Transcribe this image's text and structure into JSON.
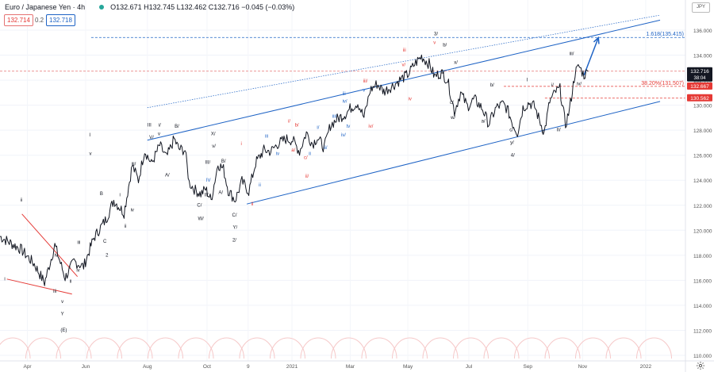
{
  "header": {
    "title": "Euro / Japanese Yen · 4h",
    "ohlc": "O132.671  H132.745  L132.462  C132.716  −0.045 (−0.03%)",
    "sell": "132.714",
    "spread": "0.2",
    "buy": "132.718",
    "status_color": "#26a69a"
  },
  "currency_label": "JPY",
  "settings_icon": "gear-icon",
  "chart_data": {
    "type": "line",
    "symbol": "EURJPY",
    "timeframe": "4h",
    "ylim": [
      109.8,
      137.2
    ],
    "xlim": [
      0,
      100
    ],
    "y_ticks": [
      110,
      112,
      114,
      116,
      118,
      120,
      122,
      124,
      126,
      128,
      130,
      132,
      134,
      136
    ],
    "y_tick_labels": [
      "110.000",
      "112.000",
      "114.000",
      "116.000",
      "118.000",
      "120.000",
      "122.000",
      "124.000",
      "126.000",
      "128.000",
      "130.000",
      "132.000",
      "134.000",
      "136.000"
    ],
    "x_ticks": [
      {
        "t": 4,
        "label": "Apr"
      },
      {
        "t": 12.5,
        "label": "Jun"
      },
      {
        "t": 21.5,
        "label": "Aug"
      },
      {
        "t": 30.2,
        "label": "Oct"
      },
      {
        "t": 36.2,
        "label": "9"
      },
      {
        "t": 42.6,
        "label": "2021"
      },
      {
        "t": 51.1,
        "label": "Mar"
      },
      {
        "t": 59.5,
        "label": "May"
      },
      {
        "t": 68.4,
        "label": "Jul"
      },
      {
        "t": 77,
        "label": "Sep"
      },
      {
        "t": 85,
        "label": "Nov"
      },
      {
        "t": 94.2,
        "label": "2022"
      }
    ],
    "price_path": [
      [
        0,
        119.5
      ],
      [
        1.5,
        119
      ],
      [
        3,
        118.5
      ],
      [
        5,
        117.3
      ],
      [
        6.5,
        115.8
      ],
      [
        8,
        118.8
      ],
      [
        9.5,
        116.2
      ],
      [
        10.8,
        117.5
      ],
      [
        12.2,
        117.1
      ],
      [
        13.7,
        119.4
      ],
      [
        15.5,
        120.9
      ],
      [
        16.6,
        122.4
      ],
      [
        18.1,
        121.4
      ],
      [
        19.3,
        125.2
      ],
      [
        20.2,
        124.0
      ],
      [
        21.1,
        126.4
      ],
      [
        22.1,
        125.3
      ],
      [
        23.3,
        126.8
      ],
      [
        24.3,
        125.8
      ],
      [
        25.4,
        127.3
      ],
      [
        26.1,
        126.5
      ],
      [
        27.0,
        126.4
      ],
      [
        27.6,
        123.8
      ],
      [
        28.5,
        123.2
      ],
      [
        29.3,
        122.9
      ],
      [
        30.0,
        123.3
      ],
      [
        30.8,
        122.4
      ],
      [
        31.8,
        125.3
      ],
      [
        32.6,
        124.9
      ],
      [
        33.3,
        123.2
      ],
      [
        34.3,
        122.4
      ],
      [
        35.3,
        123.9
      ],
      [
        36.3,
        123.1
      ],
      [
        37.3,
        125.4
      ],
      [
        38.5,
        126.4
      ],
      [
        39.5,
        126.3
      ],
      [
        40.5,
        126.9
      ],
      [
        41.7,
        127.3
      ],
      [
        42.7,
        127.2
      ],
      [
        43.7,
        126.3
      ],
      [
        44.7,
        127.8
      ],
      [
        45.6,
        126.9
      ],
      [
        46.3,
        127.4
      ],
      [
        47.3,
        126.6
      ],
      [
        48.2,
        128.4
      ],
      [
        49.2,
        128.9
      ],
      [
        50.4,
        129.3
      ],
      [
        51.2,
        129.8
      ],
      [
        52.2,
        130.2
      ],
      [
        53.1,
        129.0
      ],
      [
        54.0,
        131.2
      ],
      [
        55.0,
        131.7
      ],
      [
        56.0,
        131.1
      ],
      [
        57.4,
        131.6
      ],
      [
        58.3,
        132.0
      ],
      [
        59.6,
        132.5
      ],
      [
        60.5,
        133.3
      ],
      [
        61.5,
        133.9
      ],
      [
        62.6,
        133.3
      ],
      [
        63.4,
        132.3
      ],
      [
        64.4,
        132.6
      ],
      [
        65.3,
        132.0
      ],
      [
        66.3,
        129.5
      ],
      [
        67.2,
        131.0
      ],
      [
        68.2,
        129.9
      ],
      [
        69.2,
        130.5
      ],
      [
        70.4,
        129.7
      ],
      [
        71.3,
        128.5
      ],
      [
        72.4,
        129.8
      ],
      [
        73.4,
        130.1
      ],
      [
        74.0,
        129.7
      ],
      [
        74.8,
        128.5
      ],
      [
        75.5,
        127.8
      ],
      [
        76.3,
        129.8
      ],
      [
        77.2,
        130.2
      ],
      [
        78.0,
        129.9
      ],
      [
        78.7,
        128.8
      ],
      [
        79.4,
        127.8
      ],
      [
        80.2,
        130.3
      ],
      [
        81.1,
        131.1
      ],
      [
        81.7,
        131.3
      ],
      [
        82.5,
        128.4
      ],
      [
        83.1,
        129.7
      ],
      [
        83.9,
        132.6
      ],
      [
        84.5,
        133.1
      ],
      [
        85.2,
        132.4
      ],
      [
        85.8,
        132.7
      ]
    ],
    "channels": [
      {
        "color": "#1e63c5",
        "dashed": false,
        "points": [
          [
            21.5,
            127.2
          ],
          [
            96.3,
            136.8
          ]
        ]
      },
      {
        "color": "#1e63c5",
        "dashed": false,
        "points": [
          [
            36.0,
            122.1
          ],
          [
            96.3,
            130.3
          ]
        ]
      },
      {
        "color": "#1e63c5",
        "dashed": true,
        "points": [
          [
            21.5,
            129.8
          ],
          [
            96.3,
            137.2
          ]
        ]
      }
    ],
    "trendlines": [
      {
        "color": "#e53935",
        "points": [
          [
            3.2,
            121.3
          ],
          [
            11.3,
            116.3
          ]
        ]
      },
      {
        "color": "#e53935",
        "points": [
          [
            1.0,
            116.1
          ],
          [
            10.5,
            114.9
          ]
        ]
      }
    ],
    "arrow": {
      "color": "#1e63c5",
      "from": [
        85.2,
        132.4
      ],
      "to": [
        87.3,
        135.4
      ]
    },
    "levels": [
      {
        "price": 135.415,
        "color": "#1e63c5",
        "label": "1.618(135.415)",
        "label_color": "#1e63c5",
        "dashed": true,
        "x_from": 13.3
      },
      {
        "price": 131.507,
        "color": "#e53935",
        "label": "38.20%(131.507)",
        "label_color": "#e53935",
        "dashed": true,
        "x_from": 73.5
      },
      {
        "price": 130.562,
        "color": "#e53935",
        "label": "",
        "label_color": "#e53935",
        "dashed": true,
        "x_from": 79.5
      },
      {
        "price": 132.716,
        "color": "#e57373",
        "label": "",
        "label_color": "#e53935",
        "dashed": true,
        "x_from": 0
      }
    ],
    "price_tags": [
      {
        "price": 132.716,
        "label": "132.716",
        "sub": "38:04",
        "bg": "#131722",
        "fg": "#ffffff"
      },
      {
        "price": 131.5,
        "label": "132.667",
        "sub": "",
        "bg": "#e53935",
        "fg": "#ffffff"
      },
      {
        "price": 130.562,
        "label": "130.562",
        "sub": "",
        "bg": "#e53935",
        "fg": "#ffffff"
      }
    ],
    "annotations": [
      {
        "t": 0.7,
        "p": 116.0,
        "text": "i",
        "color": "#131722"
      },
      {
        "t": 3.1,
        "p": 122.3,
        "text": "ii",
        "color": "#131722"
      },
      {
        "t": 8.2,
        "p": 117.9,
        "text": "iv",
        "color": "#131722"
      },
      {
        "t": 8.0,
        "p": 115.0,
        "text": "iii",
        "color": "#131722"
      },
      {
        "t": 9.1,
        "p": 114.2,
        "text": "v",
        "color": "#131722"
      },
      {
        "t": 9.1,
        "p": 113.2,
        "text": "Y",
        "color": "#131722"
      },
      {
        "t": 9.3,
        "p": 111.9,
        "text": "(E)",
        "color": "#131722"
      },
      {
        "t": 10.2,
        "p": 116.9,
        "text": "i",
        "color": "#131722"
      },
      {
        "t": 10.3,
        "p": 115.8,
        "text": "ii",
        "color": "#131722"
      },
      {
        "t": 11.4,
        "p": 116.7,
        "text": "iv",
        "color": "#131722"
      },
      {
        "t": 11.5,
        "p": 118.9,
        "text": "iii",
        "color": "#131722"
      },
      {
        "t": 13.1,
        "p": 127.5,
        "text": "I",
        "color": "#131722"
      },
      {
        "t": 13.2,
        "p": 126.0,
        "text": "v",
        "color": "#131722"
      },
      {
        "t": 14.8,
        "p": 122.8,
        "text": "B",
        "color": "#131722"
      },
      {
        "t": 15.3,
        "p": 119.0,
        "text": "C",
        "color": "#131722"
      },
      {
        "t": 15.6,
        "p": 117.9,
        "text": "2",
        "color": "#131722"
      },
      {
        "t": 17.5,
        "p": 122.7,
        "text": "i",
        "color": "#131722"
      },
      {
        "t": 18.3,
        "p": 120.2,
        "text": "ii",
        "color": "#131722"
      },
      {
        "t": 19.5,
        "p": 125.2,
        "text": "iii/",
        "color": "#131722"
      },
      {
        "t": 19.3,
        "p": 121.5,
        "text": "iv",
        "color": "#131722"
      },
      {
        "t": 21.8,
        "p": 128.3,
        "text": "III",
        "color": "#131722"
      },
      {
        "t": 22.1,
        "p": 127.3,
        "text": "V/",
        "color": "#131722"
      },
      {
        "t": 23.3,
        "p": 128.3,
        "text": "i/",
        "color": "#131722"
      },
      {
        "t": 23.2,
        "p": 127.6,
        "text": "v",
        "color": "#131722"
      },
      {
        "t": 25.8,
        "p": 128.2,
        "text": "B/",
        "color": "#131722"
      },
      {
        "t": 24.4,
        "p": 124.3,
        "text": "A/",
        "color": "#131722"
      },
      {
        "t": 31.1,
        "p": 127.6,
        "text": "X/",
        "color": "#131722"
      },
      {
        "t": 31.2,
        "p": 126.6,
        "text": "v/",
        "color": "#131722"
      },
      {
        "t": 30.3,
        "p": 125.3,
        "text": "III/",
        "color": "#131722"
      },
      {
        "t": 30.4,
        "p": 123.9,
        "text": "IV",
        "color": "#1e63c5"
      },
      {
        "t": 30.1,
        "p": 122.7,
        "text": "II/",
        "color": "#131722"
      },
      {
        "t": 32.6,
        "p": 125.4,
        "text": "B/",
        "color": "#131722"
      },
      {
        "t": 32.2,
        "p": 122.9,
        "text": "A/",
        "color": "#131722"
      },
      {
        "t": 29.1,
        "p": 121.9,
        "text": "C/",
        "color": "#131722"
      },
      {
        "t": 29.3,
        "p": 120.8,
        "text": "W/",
        "color": "#131722"
      },
      {
        "t": 34.2,
        "p": 121.1,
        "text": "C/",
        "color": "#131722"
      },
      {
        "t": 34.3,
        "p": 120.1,
        "text": "Y/",
        "color": "#131722"
      },
      {
        "t": 34.2,
        "p": 119.1,
        "text": "2/",
        "color": "#131722"
      },
      {
        "t": 35.2,
        "p": 126.8,
        "text": "i",
        "color": "#e53935"
      },
      {
        "t": 37.9,
        "p": 123.5,
        "text": "ii",
        "color": "#1e63c5"
      },
      {
        "t": 36.8,
        "p": 122.0,
        "text": "ii",
        "color": "#e53935"
      },
      {
        "t": 38.9,
        "p": 127.4,
        "text": "iii",
        "color": "#1e63c5"
      },
      {
        "t": 40.5,
        "p": 126.0,
        "text": "iv",
        "color": "#1e63c5"
      },
      {
        "t": 42.2,
        "p": 128.6,
        "text": "i/",
        "color": "#e53935"
      },
      {
        "t": 43.3,
        "p": 128.3,
        "text": "b/",
        "color": "#e53935"
      },
      {
        "t": 42.8,
        "p": 126.3,
        "text": "a/",
        "color": "#e53935"
      },
      {
        "t": 44.6,
        "p": 125.7,
        "text": "c/",
        "color": "#e53935"
      },
      {
        "t": 44.8,
        "p": 124.2,
        "text": "ii/",
        "color": "#e53935"
      },
      {
        "t": 46.4,
        "p": 128.1,
        "text": "i/",
        "color": "#1e63c5"
      },
      {
        "t": 45.2,
        "p": 126.0,
        "text": "ii",
        "color": "#1e63c5"
      },
      {
        "t": 47.5,
        "p": 126.5,
        "text": "ii/",
        "color": "#1e63c5"
      },
      {
        "t": 48.8,
        "p": 129.0,
        "text": "iii/",
        "color": "#1e63c5"
      },
      {
        "t": 50.1,
        "p": 127.5,
        "text": "iv/",
        "color": "#1e63c5"
      },
      {
        "t": 50.8,
        "p": 128.2,
        "text": "tv",
        "color": "#1e63c5"
      },
      {
        "t": 50.2,
        "p": 130.8,
        "text": "iii",
        "color": "#1e63c5"
      },
      {
        "t": 50.3,
        "p": 130.2,
        "text": "iv/",
        "color": "#1e63c5"
      },
      {
        "t": 53.3,
        "p": 131.8,
        "text": "iii/",
        "color": "#e53935"
      },
      {
        "t": 53.1,
        "p": 131.1,
        "text": "v",
        "color": "#1e63c5"
      },
      {
        "t": 54.1,
        "p": 128.2,
        "text": "iv/",
        "color": "#e53935"
      },
      {
        "t": 59.0,
        "p": 134.3,
        "text": "iii",
        "color": "#e53935"
      },
      {
        "t": 58.9,
        "p": 133.1,
        "text": "v/",
        "color": "#e53935"
      },
      {
        "t": 59.8,
        "p": 130.4,
        "text": "iv",
        "color": "#e53935"
      },
      {
        "t": 63.6,
        "p": 135.6,
        "text": "3/",
        "color": "#131722"
      },
      {
        "t": 63.4,
        "p": 134.9,
        "text": "v",
        "color": "#e53935"
      },
      {
        "t": 64.9,
        "p": 134.7,
        "text": "b/",
        "color": "#131722"
      },
      {
        "t": 66.5,
        "p": 133.3,
        "text": "x/",
        "color": "#131722"
      },
      {
        "t": 64.6,
        "p": 132.5,
        "text": "a/",
        "color": "#131722"
      },
      {
        "t": 65.9,
        "p": 130.1,
        "text": "c/",
        "color": "#131722"
      },
      {
        "t": 66.1,
        "p": 128.9,
        "text": "w/",
        "color": "#131722"
      },
      {
        "t": 71.8,
        "p": 131.5,
        "text": "b/",
        "color": "#131722"
      },
      {
        "t": 70.5,
        "p": 128.6,
        "text": "a/",
        "color": "#131722"
      },
      {
        "t": 76.9,
        "p": 131.9,
        "text": "I",
        "color": "#131722"
      },
      {
        "t": 74.6,
        "p": 127.9,
        "text": "c/",
        "color": "#131722"
      },
      {
        "t": 74.7,
        "p": 126.9,
        "text": "y/",
        "color": "#131722"
      },
      {
        "t": 74.8,
        "p": 125.9,
        "text": "4/",
        "color": "#131722"
      },
      {
        "t": 79.3,
        "p": 127.8,
        "text": "ii",
        "color": "#131722"
      },
      {
        "t": 80.6,
        "p": 131.5,
        "text": "i/",
        "color": "#131722"
      },
      {
        "t": 81.5,
        "p": 127.9,
        "text": "II/",
        "color": "#131722"
      },
      {
        "t": 83.4,
        "p": 134.0,
        "text": "iii/",
        "color": "#131722"
      },
      {
        "t": 84.5,
        "p": 131.6,
        "text": "iv/",
        "color": "#131722"
      }
    ]
  }
}
